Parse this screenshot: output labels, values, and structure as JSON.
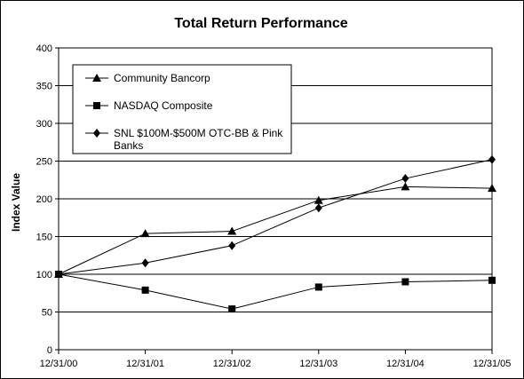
{
  "chart_data": {
    "type": "line",
    "title": "Total Return Performance",
    "xlabel": "",
    "ylabel": "Index Value",
    "x": [
      "12/31/00",
      "12/31/01",
      "12/31/02",
      "12/31/03",
      "12/31/04",
      "12/31/05"
    ],
    "ylim": [
      0,
      400
    ],
    "yticks": [
      0,
      50,
      100,
      150,
      200,
      250,
      300,
      350,
      400
    ],
    "grid": true,
    "legend_position": "top-left",
    "series": [
      {
        "name": "Community Bancorp",
        "marker": "triangle",
        "values": [
          100,
          154,
          157,
          198,
          216,
          214
        ]
      },
      {
        "name": "NASDAQ Composite",
        "marker": "square",
        "values": [
          100,
          79,
          54,
          83,
          90,
          92
        ]
      },
      {
        "name": "SNL $100M-$500M OTC-BB & Pink Banks",
        "marker": "diamond",
        "values": [
          100,
          115,
          138,
          188,
          227,
          252
        ]
      }
    ],
    "legend_lines": [
      [
        "Community Bancorp"
      ],
      [
        "NASDAQ Composite"
      ],
      [
        "SNL $100M-$500M OTC-BB & Pink",
        "Banks"
      ]
    ],
    "colors": {
      "line": "#000000",
      "grid": "#000000",
      "background": "#ffffff"
    }
  }
}
